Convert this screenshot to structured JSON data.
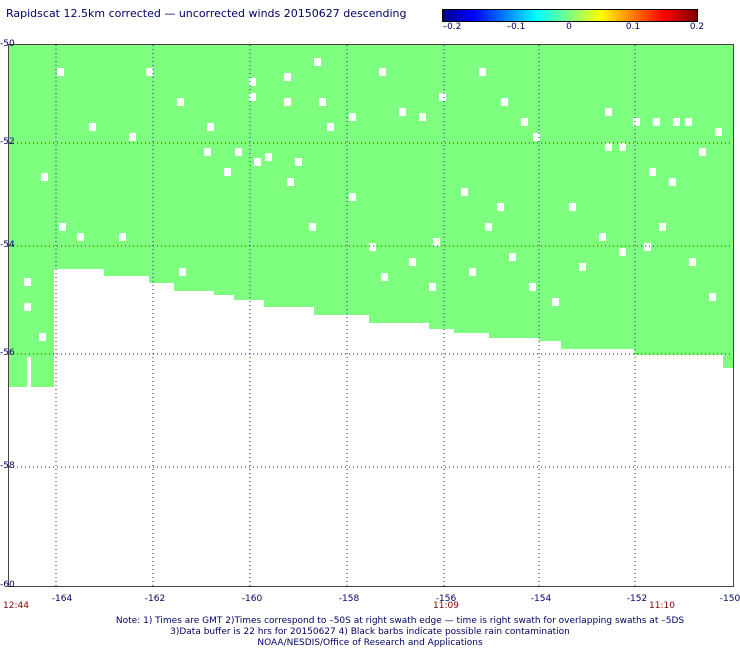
{
  "title": "Rapidscat 12.5km corrected — uncorrected winds 20150627 descending",
  "colorbar": {
    "labels": [
      "–0.2",
      "–0.1",
      "0",
      "0.1",
      "0.2"
    ],
    "colors": [
      "#00008f",
      "#0000ff",
      "#00ffff",
      "#7fff7f",
      "#ffff00",
      "#ff0000",
      "#800000"
    ]
  },
  "lat_labels": [
    "-50",
    "-52",
    "-54",
    "-56",
    "-58",
    "-60"
  ],
  "lon_labels": [
    "-164",
    "-162",
    "-160",
    "-158",
    "-156",
    "-154",
    "-152",
    "-150"
  ],
  "time_labels": [
    "12:44",
    "11:09",
    "11:10"
  ],
  "notes": [
    "Note: 1) Times are GMT 2)Times correspond to –50S at right swath edge — time is right swath for overlapping swaths at –5DS",
    "3)Data buffer is 22 hrs for 20150627 4) Black barbs indicate possible rain contamination",
    "NOAA/NESDIS/Office of Research and Applications"
  ],
  "map": {
    "lat_range": [
      -60,
      -50
    ],
    "lon_range": [
      -165,
      -150
    ],
    "field_color": "#7fff7f",
    "grid_style": "dotted blue"
  }
}
